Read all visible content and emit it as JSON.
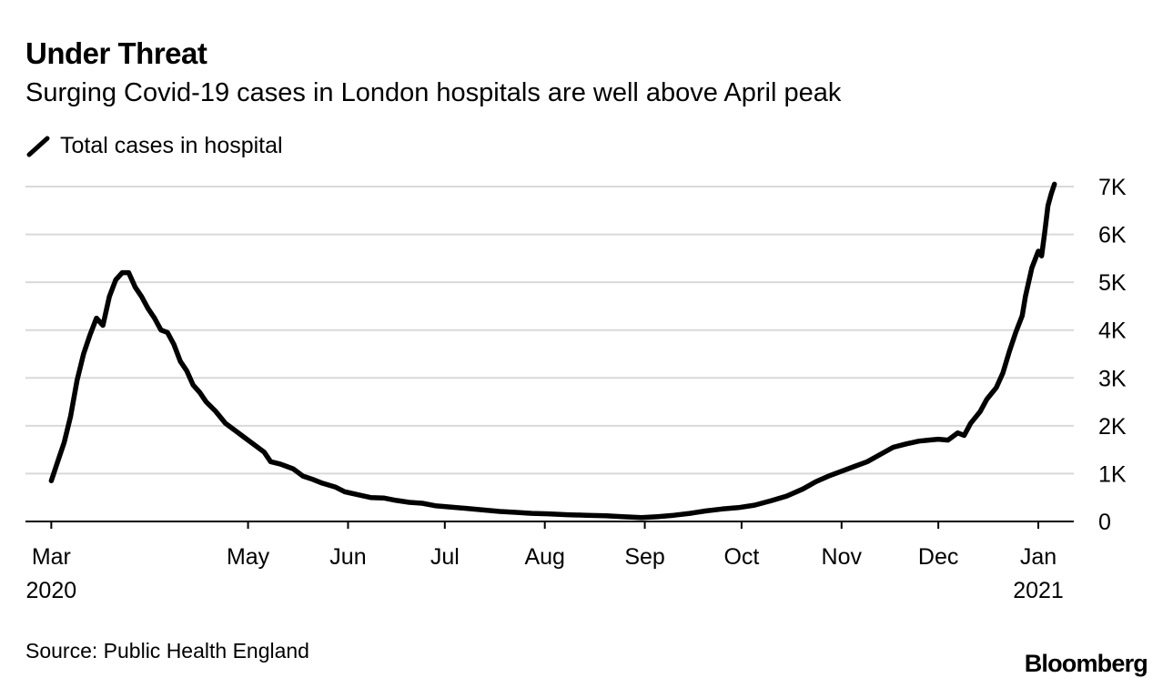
{
  "header": {
    "title": "Under Threat",
    "subtitle": "Surging Covid-19 cases in London hospitals are well above April peak"
  },
  "legend": {
    "label": "Total cases in hospital"
  },
  "footer": {
    "source": "Source: Public Health England",
    "brand": "Bloomberg"
  },
  "chart_data": {
    "type": "line",
    "title": "Under Threat",
    "subtitle": "Surging Covid-19 cases in London hospitals are well above April peak",
    "xlabel": "",
    "ylabel": "",
    "ylim": [
      0,
      7000
    ],
    "yticks": [
      0,
      1000,
      2000,
      3000,
      4000,
      5000,
      6000,
      7000
    ],
    "ytick_labels": [
      "0",
      "1K",
      "2K",
      "3K",
      "4K",
      "5K",
      "6K",
      "7K"
    ],
    "xlim": [
      "2020-02-22",
      "2021-01-12"
    ],
    "xticks": [
      {
        "date": "2020-03-01",
        "label": "Mar",
        "sublabel": "2020"
      },
      {
        "date": "2020-05-01",
        "label": "May",
        "sublabel": ""
      },
      {
        "date": "2020-06-01",
        "label": "Jun",
        "sublabel": ""
      },
      {
        "date": "2020-07-01",
        "label": "Jul",
        "sublabel": ""
      },
      {
        "date": "2020-08-01",
        "label": "Aug",
        "sublabel": ""
      },
      {
        "date": "2020-09-01",
        "label": "Sep",
        "sublabel": ""
      },
      {
        "date": "2020-10-01",
        "label": "Oct",
        "sublabel": ""
      },
      {
        "date": "2020-11-01",
        "label": "Nov",
        "sublabel": ""
      },
      {
        "date": "2020-12-01",
        "label": "Dec",
        "sublabel": ""
      },
      {
        "date": "2021-01-01",
        "label": "Jan",
        "sublabel": "2021"
      }
    ],
    "grid": true,
    "series": [
      {
        "name": "Total cases in hospital",
        "color": "#000000",
        "points": [
          [
            "2020-03-01",
            850
          ],
          [
            "2020-03-03",
            1250
          ],
          [
            "2020-03-05",
            1650
          ],
          [
            "2020-03-07",
            2200
          ],
          [
            "2020-03-09",
            2950
          ],
          [
            "2020-03-11",
            3500
          ],
          [
            "2020-03-13",
            3900
          ],
          [
            "2020-03-15",
            4250
          ],
          [
            "2020-03-17",
            4100
          ],
          [
            "2020-03-19",
            4700
          ],
          [
            "2020-03-21",
            5050
          ],
          [
            "2020-03-23",
            5200
          ],
          [
            "2020-03-25",
            5200
          ],
          [
            "2020-03-27",
            4900
          ],
          [
            "2020-03-29",
            4700
          ],
          [
            "2020-03-31",
            4450
          ],
          [
            "2020-04-02",
            4250
          ],
          [
            "2020-04-04",
            4000
          ],
          [
            "2020-04-06",
            3950
          ],
          [
            "2020-04-08",
            3700
          ],
          [
            "2020-04-10",
            3350
          ],
          [
            "2020-04-12",
            3150
          ],
          [
            "2020-04-14",
            2850
          ],
          [
            "2020-04-16",
            2700
          ],
          [
            "2020-04-18",
            2500
          ],
          [
            "2020-04-21",
            2300
          ],
          [
            "2020-04-24",
            2050
          ],
          [
            "2020-04-27",
            1900
          ],
          [
            "2020-04-30",
            1750
          ],
          [
            "2020-05-03",
            1600
          ],
          [
            "2020-05-06",
            1450
          ],
          [
            "2020-05-08",
            1250
          ],
          [
            "2020-05-11",
            1200
          ],
          [
            "2020-05-15",
            1100
          ],
          [
            "2020-05-18",
            950
          ],
          [
            "2020-05-21",
            880
          ],
          [
            "2020-05-24",
            800
          ],
          [
            "2020-05-28",
            720
          ],
          [
            "2020-05-31",
            620
          ],
          [
            "2020-06-04",
            560
          ],
          [
            "2020-06-08",
            500
          ],
          [
            "2020-06-12",
            490
          ],
          [
            "2020-06-16",
            440
          ],
          [
            "2020-06-20",
            400
          ],
          [
            "2020-06-24",
            380
          ],
          [
            "2020-06-28",
            330
          ],
          [
            "2020-07-03",
            300
          ],
          [
            "2020-07-08",
            270
          ],
          [
            "2020-07-13",
            240
          ],
          [
            "2020-07-18",
            210
          ],
          [
            "2020-07-23",
            190
          ],
          [
            "2020-07-28",
            170
          ],
          [
            "2020-08-02",
            160
          ],
          [
            "2020-08-08",
            140
          ],
          [
            "2020-08-14",
            130
          ],
          [
            "2020-08-20",
            120
          ],
          [
            "2020-08-25",
            100
          ],
          [
            "2020-08-31",
            80
          ],
          [
            "2020-09-05",
            100
          ],
          [
            "2020-09-10",
            130
          ],
          [
            "2020-09-15",
            170
          ],
          [
            "2020-09-20",
            220
          ],
          [
            "2020-09-25",
            260
          ],
          [
            "2020-09-30",
            290
          ],
          [
            "2020-10-05",
            340
          ],
          [
            "2020-10-10",
            430
          ],
          [
            "2020-10-15",
            530
          ],
          [
            "2020-10-20",
            680
          ],
          [
            "2020-10-24",
            830
          ],
          [
            "2020-10-28",
            950
          ],
          [
            "2020-11-01",
            1050
          ],
          [
            "2020-11-05",
            1150
          ],
          [
            "2020-11-09",
            1250
          ],
          [
            "2020-11-13",
            1400
          ],
          [
            "2020-11-17",
            1550
          ],
          [
            "2020-11-21",
            1620
          ],
          [
            "2020-11-25",
            1680
          ],
          [
            "2020-11-28",
            1700
          ],
          [
            "2020-12-01",
            1720
          ],
          [
            "2020-12-04",
            1700
          ],
          [
            "2020-12-07",
            1850
          ],
          [
            "2020-12-09",
            1800
          ],
          [
            "2020-12-11",
            2050
          ],
          [
            "2020-12-14",
            2300
          ],
          [
            "2020-12-16",
            2550
          ],
          [
            "2020-12-19",
            2800
          ],
          [
            "2020-12-21",
            3100
          ],
          [
            "2020-12-23",
            3550
          ],
          [
            "2020-12-25",
            3950
          ],
          [
            "2020-12-27",
            4300
          ],
          [
            "2020-12-28",
            4700
          ],
          [
            "2020-12-30",
            5300
          ],
          [
            "2021-01-01",
            5650
          ],
          [
            "2021-01-02",
            5550
          ],
          [
            "2021-01-03",
            6050
          ],
          [
            "2021-01-04",
            6600
          ],
          [
            "2021-01-05",
            6850
          ],
          [
            "2021-01-06",
            7050
          ]
        ]
      }
    ]
  }
}
